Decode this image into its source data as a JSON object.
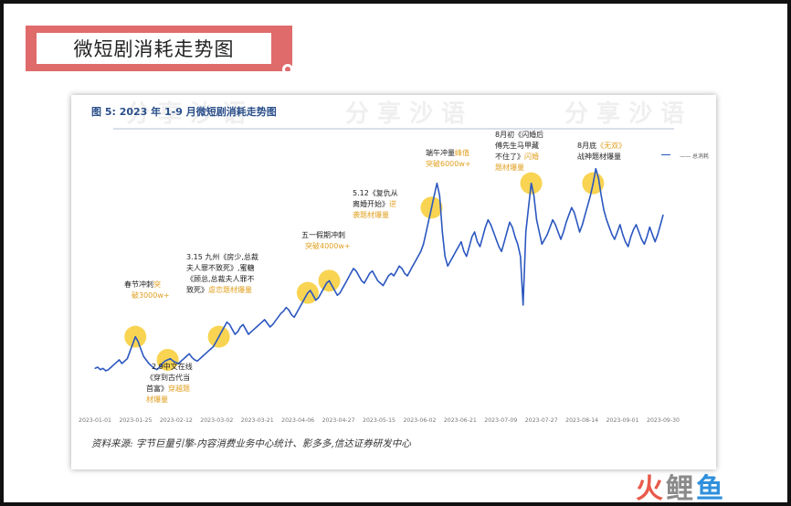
{
  "banner": {
    "title": "微短剧消耗走势图"
  },
  "figure": {
    "title": "图 5:  2023 年 1-9 月微短剧消耗走势图",
    "source": "资料来源:  字节巨量引擎-内容消费业务中心统计、影多多,信达证券研发中心",
    "watermark": "分 享 沙 语"
  },
  "logo": {
    "part1": "火",
    "part2": "鲤",
    "part3": "鱼"
  },
  "colors": {
    "line": "#2b57c0",
    "highlight": "#f5c518",
    "annotation_accent": "#e0a020",
    "banner": "#e06b6b"
  },
  "chart_data": {
    "type": "line",
    "title": "图 5:  2023 年 1-9 月微短剧消耗走势图",
    "xlabel": "",
    "ylabel": "",
    "legend": {
      "label": "—— 总消耗",
      "position": "top-right"
    },
    "x_ticks": [
      "2023-01-01",
      "2023-01-25",
      "2023-02-12",
      "2023-03-02",
      "2023-03-21",
      "2023-04-06",
      "2023-04-27",
      "2023-05-15",
      "2023-06-02",
      "2023-06-21",
      "2023-07-09",
      "2023-07-27",
      "2023-08-14",
      "2023-09-01",
      "2023-09-30"
    ],
    "y_ticks": [],
    "series": [
      {
        "name": "总消耗",
        "values": [
          8,
          9,
          7,
          8,
          6,
          7,
          9,
          11,
          13,
          15,
          12,
          14,
          16,
          22,
          28,
          34,
          30,
          24,
          18,
          15,
          12,
          10,
          8,
          7,
          9,
          12,
          14,
          15,
          16,
          14,
          13,
          12,
          14,
          16,
          18,
          20,
          17,
          15,
          14,
          16,
          18,
          20,
          22,
          24,
          26,
          30,
          34,
          38,
          42,
          46,
          44,
          40,
          36,
          38,
          42,
          44,
          40,
          36,
          38,
          40,
          42,
          44,
          46,
          48,
          45,
          42,
          44,
          47,
          50,
          53,
          55,
          58,
          56,
          52,
          50,
          54,
          58,
          62,
          66,
          70,
          72,
          68,
          64,
          66,
          70,
          74,
          78,
          80,
          76,
          72,
          68,
          70,
          74,
          78,
          82,
          86,
          90,
          88,
          84,
          80,
          78,
          82,
          86,
          88,
          84,
          80,
          78,
          76,
          80,
          84,
          86,
          84,
          88,
          92,
          90,
          86,
          84,
          88,
          92,
          96,
          100,
          104,
          110,
          120,
          130,
          140,
          150,
          160,
          150,
          120,
          100,
          92,
          96,
          100,
          104,
          108,
          112,
          104,
          100,
          108,
          116,
          120,
          112,
          108,
          116,
          124,
          130,
          126,
          120,
          114,
          108,
          104,
          112,
          120,
          128,
          124,
          116,
          110,
          100,
          60,
          120,
          140,
          160,
          150,
          130,
          120,
          110,
          114,
          118,
          124,
          130,
          126,
          120,
          114,
          120,
          128,
          134,
          140,
          136,
          128,
          120,
          126,
          134,
          142,
          150,
          160,
          172,
          164,
          150,
          138,
          130,
          124,
          118,
          114,
          120,
          126,
          118,
          112,
          108,
          116,
          122,
          126,
          120,
          114,
          110,
          116,
          124,
          118,
          112,
          118,
          126,
          134
        ]
      }
    ],
    "annotations": [
      {
        "date": "2023-01-25",
        "text": "春节冲刺突破3000w+"
      },
      {
        "date": "2023-02-12",
        "text": "2.9中文在线《穿到古代当首富》穿越题材爆量"
      },
      {
        "date": "2023-03-15",
        "text": "3.15 九州《房少,总裁夫人罪不致死》,蜜糖《顾总,总裁夫人罪不致死》虐恋题材爆量"
      },
      {
        "date": "2023-05-01",
        "text": "五一假期冲刺突破4000w+"
      },
      {
        "date": "2023-05-12",
        "text": "5.12《复仇从离婚开始》逆袭题材爆量"
      },
      {
        "date": "2023-06-21",
        "text": "端午冲量峰值突破6000w+"
      },
      {
        "date": "2023-08-01",
        "text": "8月初《闪婚后傅先生马甲藏不住了》闪婚题材爆量"
      },
      {
        "date": "2023-08-31",
        "text": "8月底《无双》战神题材爆量"
      }
    ]
  },
  "chart_text": {
    "a1_line1": "春节冲刺",
    "a1_line1b": "突",
    "a1_line2": "破3000w+",
    "a2_line1": "2.9中文在线",
    "a2_line2": "《穿到古代当",
    "a2_line3": "首富》",
    "a2_line3b": "穿越题",
    "a2_line4": "材爆量",
    "a3_line1": "3.15 九州《房少,总裁",
    "a3_line2": "夫人罪不致死》,蜜糖",
    "a3_line3": "《顾总,总裁夫人罪不",
    "a3_line4": "致死》",
    "a3_line4b": "虐恋题材爆量",
    "a4_line1": "五一假期冲刺",
    "a4_line2": "突破4000w+",
    "a5_line1": "5.12《复仇从",
    "a5_line2": "离婚开始》",
    "a5_line2b": "逆",
    "a5_line3": "袭题材爆量",
    "a6_line1": "端午冲量",
    "a6_line1b": "峰值",
    "a6_line2": "突破6000w+",
    "a7_line1": "8月初《闪婚后",
    "a7_line2": "傅先生马甲藏",
    "a7_line3": "不住了》",
    "a7_line3b": "闪婚",
    "a7_line4": "题材爆量",
    "a8_line1": "8月底",
    "a8_line1b": "《无双》",
    "a8_line2": "战神题材爆量"
  }
}
